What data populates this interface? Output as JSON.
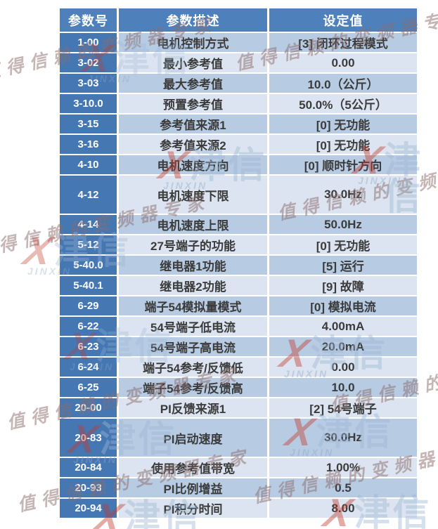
{
  "table": {
    "headers": [
      "参数号",
      "参数描述",
      "设定值"
    ],
    "rows": [
      {
        "no": "1-00",
        "desc": "电机控制方式",
        "value": "[3] 闭环过程模式"
      },
      {
        "no": "3-02",
        "desc": "最小参考值",
        "value": "0.00"
      },
      {
        "no": "3-03",
        "desc": "最大参考值",
        "value": "10.0（公斤）"
      },
      {
        "no": "3-10.0",
        "desc": "预置参考值",
        "value": "50.0%（5公斤）"
      },
      {
        "no": "3-15",
        "desc": "参考值来源1",
        "value": "[0] 无功能"
      },
      {
        "no": "3-16",
        "desc": "参考值来源2",
        "value": "[0] 无功能"
      },
      {
        "no": "4-10",
        "desc": "电机速度方向",
        "value": "[0] 顺时针方向"
      },
      {
        "no": "4-12",
        "desc": "电机速度下限",
        "value": "30.0Hz",
        "tall": true
      },
      {
        "no": "4-14",
        "desc": "电机速度上限",
        "value": "50.0Hz"
      },
      {
        "no": "5-12",
        "desc": "27号端子的功能",
        "value": "[0] 无功能"
      },
      {
        "no": "5-40.0",
        "desc": "继电器1功能",
        "value": "[5] 运行"
      },
      {
        "no": "5-40.1",
        "desc": "继电器2功能",
        "value": "[9] 故障"
      },
      {
        "no": "6-29",
        "desc": "端子54模拟量模式",
        "value": "[0] 模拟电流"
      },
      {
        "no": "6-22",
        "desc": "54号端子低电流",
        "value": "4.00mA"
      },
      {
        "no": "6-23",
        "desc": "54号端子高电流",
        "value": "20.0mA"
      },
      {
        "no": "6-24",
        "desc": "端子54参考/反馈低",
        "value": "0.00"
      },
      {
        "no": "6-25",
        "desc": "端子54参考/反馈高",
        "value": "10.0"
      },
      {
        "no": "20-00",
        "desc": "PI反馈来源1",
        "value": "[2] 54号端子"
      },
      {
        "no": "20-83",
        "desc": "PI启动速度",
        "value": "30.0Hz",
        "tall": true
      },
      {
        "no": "20-84",
        "desc": "使用参考值带宽",
        "value": "1.00%"
      },
      {
        "no": "20-93",
        "desc": "PI比例增益",
        "value": "0.5"
      },
      {
        "no": "20-94",
        "desc": "PI积分时间",
        "value": "8.00"
      }
    ]
  },
  "watermark": {
    "slogan": "值得信赖的变频器专家",
    "logo_x": "X",
    "logo_cn": "津信",
    "logo_en": "JINXIN"
  },
  "colors": {
    "header_bg": "#4e80bc",
    "param_col_bg": "#4577b3",
    "row_mid": "#b7cbe3",
    "row_light": "#dbe4f0",
    "cell_text": "#3b3b3b",
    "header_text": "#ffffff",
    "wm_slogan": "#8c6d6d",
    "wm_red": "#c13a2c",
    "wm_blue": "#9db7d3",
    "wm_blue2": "#8ea9c7"
  }
}
